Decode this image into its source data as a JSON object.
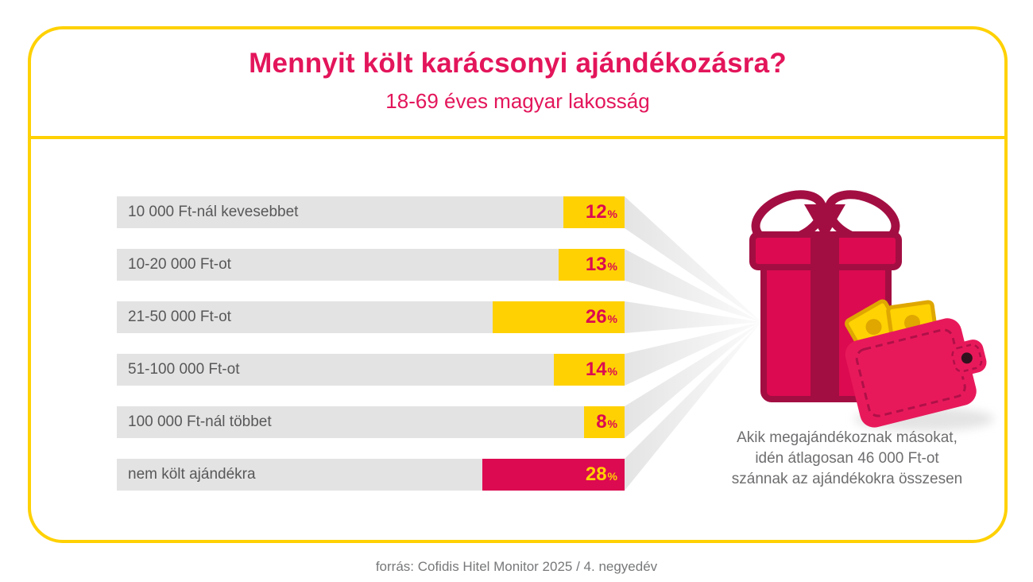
{
  "header": {
    "title": "Mennyit költ karácsonyi ajándékozásra?",
    "subtitle": "18-69 éves magyar lakosság"
  },
  "chart_data": {
    "type": "bar",
    "orientation": "horizontal",
    "categories": [
      "10 000 Ft-nál kevesebbet",
      "10-20 000 Ft-ot",
      "21-50 000 Ft-ot",
      "51-100 000 Ft-ot",
      "100 000 Ft-nál többet",
      "nem költ ajándékra"
    ],
    "values": [
      12,
      13,
      26,
      14,
      8,
      28
    ],
    "unit": "%",
    "xlim": [
      0,
      100
    ],
    "grid": false,
    "legend": false,
    "track_color": "#E3E3E3",
    "segment_colors": [
      "#FFD103",
      "#FFD103",
      "#FFD103",
      "#FFD103",
      "#FFD103",
      "#DC0A50"
    ],
    "value_label_colors": [
      "#DC0A50",
      "#DC0A50",
      "#DC0A50",
      "#DC0A50",
      "#DC0A50",
      "#FFD103"
    ]
  },
  "annotation": {
    "lines": [
      "Akik megajándékoznak másokat,",
      "idén átlagosan 46 000 Ft-ot",
      "szánnak az ajándékokra összesen"
    ]
  },
  "illustration": {
    "name": "gift-box-and-wallet-with-banknotes"
  },
  "footer": {
    "source": "forrás: Cofidis Hitel Monitor 2025 / 4. negyedév"
  },
  "colors": {
    "accent_yellow": "#FFD103",
    "accent_crimson": "#DC0A50",
    "title_pink": "#E3155B",
    "dark_crimson_outline": "#A30E42",
    "wallet_pink": "#E8195B",
    "track_gray": "#E3E3E3",
    "label_gray": "#58585A"
  }
}
